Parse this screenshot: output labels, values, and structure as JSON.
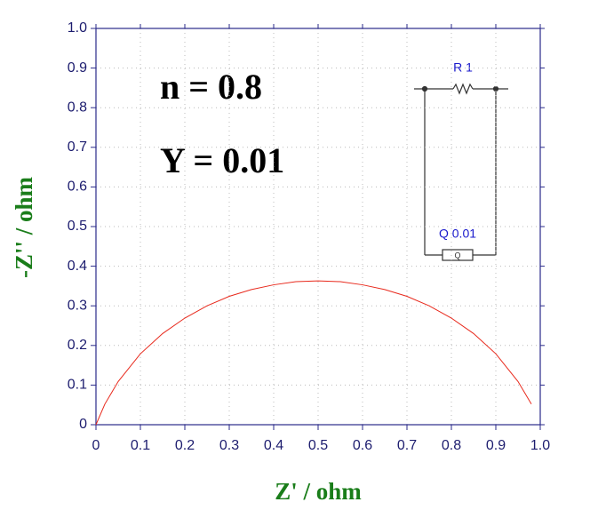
{
  "chart_data": {
    "type": "line",
    "x": [
      0,
      0.02,
      0.05,
      0.1,
      0.15,
      0.2,
      0.25,
      0.3,
      0.35,
      0.4,
      0.45,
      0.5,
      0.55,
      0.6,
      0.65,
      0.7,
      0.75,
      0.8,
      0.85,
      0.9,
      0.95,
      0.98
    ],
    "values": [
      0,
      0.052,
      0.109,
      0.179,
      0.23,
      0.269,
      0.3,
      0.324,
      0.341,
      0.353,
      0.361,
      0.363,
      0.361,
      0.353,
      0.341,
      0.324,
      0.3,
      0.269,
      0.23,
      0.179,
      0.109,
      0.052
    ],
    "color": "#e8291c",
    "xlabel": "Z' / ohm",
    "ylabel": "-Z'' / ohm",
    "xlim": [
      0,
      1
    ],
    "ylim": [
      0,
      1
    ],
    "xticks": [
      0,
      0.1,
      0.2,
      0.3,
      0.4,
      0.5,
      0.6,
      0.7,
      0.8,
      0.9,
      {
        "value": 1,
        "label": "1.0"
      }
    ],
    "yticks": [
      0,
      0.1,
      0.2,
      0.3,
      0.4,
      0.5,
      0.6,
      0.7,
      0.8,
      0.9,
      {
        "value": 1,
        "label": "1.0"
      }
    ],
    "grid": true,
    "annotations": [
      "n = 0.8",
      "Y = 0.01"
    ],
    "circuit_labels": [
      "R 1",
      "Q 0.01",
      "Q"
    ]
  }
}
